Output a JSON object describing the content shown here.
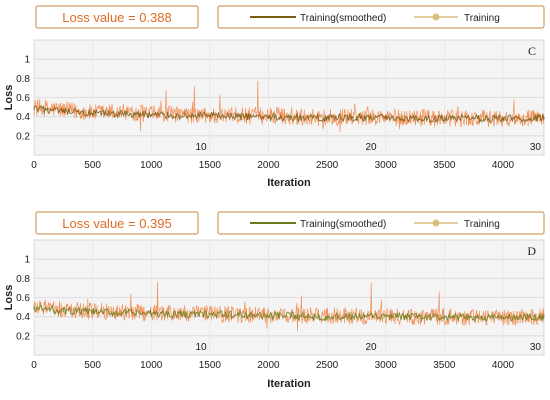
{
  "chart_data": [
    {
      "type": "line",
      "panel_label": "C",
      "loss_box_text": "Loss value = 0.388",
      "xlabel": "Iteration",
      "ylabel": "Loss",
      "xlim": [
        0,
        4350
      ],
      "ylim": [
        0,
        1.2
      ],
      "xticks": [
        0,
        500,
        1000,
        1500,
        2000,
        2500,
        3000,
        3500,
        4000
      ],
      "yticks": [
        0.2,
        0.4,
        0.6,
        0.8,
        1
      ],
      "epoch_labels": [
        {
          "label": "10",
          "iteration": 1450
        },
        {
          "label": "20",
          "iteration": 2900
        },
        {
          "label": "30",
          "iteration": 4350
        }
      ],
      "grid": true,
      "legend_position": "top",
      "series": [
        {
          "name": "Training(smoothed)",
          "color": "#7a5c12",
          "x": [
            0,
            250,
            500,
            750,
            1000,
            1250,
            1500,
            1750,
            2000,
            2250,
            2500,
            2750,
            3000,
            3250,
            3500,
            3750,
            4000,
            4350
          ],
          "values": [
            0.48,
            0.45,
            0.43,
            0.43,
            0.42,
            0.41,
            0.41,
            0.4,
            0.4,
            0.39,
            0.39,
            0.39,
            0.39,
            0.38,
            0.38,
            0.38,
            0.38,
            0.388
          ]
        },
        {
          "name": "Training",
          "color": "#f07f3c",
          "x": [
            0,
            250,
            500,
            750,
            1000,
            1250,
            1500,
            1750,
            2000,
            2250,
            2500,
            2750,
            3000,
            3250,
            3500,
            3750,
            4000,
            4350
          ],
          "values": [
            0.5,
            0.47,
            0.44,
            0.45,
            0.43,
            0.42,
            0.41,
            0.41,
            0.41,
            0.4,
            0.39,
            0.4,
            0.39,
            0.39,
            0.38,
            0.38,
            0.38,
            0.39
          ]
        }
      ]
    },
    {
      "type": "line",
      "panel_label": "D",
      "loss_box_text": "Loss value = 0.395",
      "xlabel": "Iteration",
      "ylabel": "Loss",
      "xlim": [
        0,
        4350
      ],
      "ylim": [
        0,
        1.2
      ],
      "xticks": [
        0,
        500,
        1000,
        1500,
        2000,
        2500,
        3000,
        3500,
        4000
      ],
      "yticks": [
        0.2,
        0.4,
        0.6,
        0.8,
        1
      ],
      "epoch_labels": [
        {
          "label": "10",
          "iteration": 1450
        },
        {
          "label": "20",
          "iteration": 2900
        },
        {
          "label": "30",
          "iteration": 4350
        }
      ],
      "grid": true,
      "legend_position": "top",
      "series": [
        {
          "name": "Training(smoothed)",
          "color": "#6b7d1a",
          "x": [
            0,
            250,
            500,
            750,
            1000,
            1250,
            1500,
            1750,
            2000,
            2250,
            2500,
            2750,
            3000,
            3250,
            3500,
            3750,
            4000,
            4350
          ],
          "values": [
            0.49,
            0.46,
            0.45,
            0.44,
            0.43,
            0.43,
            0.42,
            0.42,
            0.41,
            0.41,
            0.4,
            0.4,
            0.4,
            0.4,
            0.39,
            0.39,
            0.39,
            0.395
          ]
        },
        {
          "name": "Training",
          "color": "#f07f3c",
          "x": [
            0,
            250,
            500,
            750,
            1000,
            1250,
            1500,
            1750,
            2000,
            2250,
            2500,
            2750,
            3000,
            3250,
            3500,
            3750,
            4000,
            4350
          ],
          "values": [
            0.51,
            0.47,
            0.46,
            0.45,
            0.44,
            0.43,
            0.43,
            0.42,
            0.42,
            0.41,
            0.41,
            0.41,
            0.4,
            0.4,
            0.4,
            0.39,
            0.39,
            0.4
          ]
        }
      ]
    }
  ]
}
